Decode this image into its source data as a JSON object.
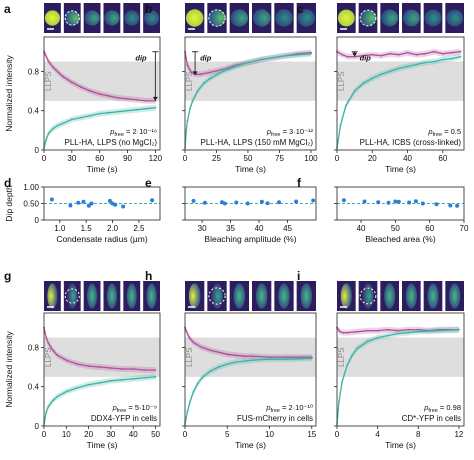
{
  "figure": {
    "colors": {
      "magenta": "#b2509b",
      "teal": "#3fb3a3",
      "band": "#dedede",
      "dot": "#2c7fd6",
      "guide": "#3fb3a3",
      "cell_dark": "#3a2a6e",
      "cell_bright": "#d8e83a"
    },
    "icon_names": [
      "scale-bar-icon",
      "dashed-circle-icon",
      "dip-arrow-icon"
    ],
    "ylabel_top": "Normalized intensity",
    "ylabel_mid": "Dip depth",
    "band_label": "LLPS",
    "dip_label": "dip"
  },
  "chart_data": [
    {
      "id": "a",
      "type": "line",
      "panel_label": "a",
      "xlabel": "Time (s)",
      "xlim": [
        0,
        125
      ],
      "xticks": [
        0,
        30,
        60,
        90,
        120
      ],
      "ylim": [
        0,
        1.15
      ],
      "band": [
        0.5,
        0.9
      ],
      "y_axis_label": true,
      "p_prefix": "p",
      "p_sub": "free",
      "p_text": " = 2·10⁻¹⁶",
      "condition": "PLL-HA, LLPS (no MgCl₂)",
      "dip": {
        "x": 120,
        "top": 1.0,
        "bottom": 0.5
      },
      "series": [
        {
          "role": "magenta",
          "x": [
            0,
            5,
            10,
            20,
            30,
            40,
            50,
            60,
            70,
            80,
            90,
            100,
            110,
            120
          ],
          "y": [
            1.0,
            0.9,
            0.84,
            0.75,
            0.69,
            0.64,
            0.6,
            0.57,
            0.55,
            0.53,
            0.52,
            0.51,
            0.5,
            0.5
          ]
        },
        {
          "role": "teal",
          "x": [
            0,
            2,
            5,
            10,
            15,
            20,
            30,
            40,
            50,
            60,
            70,
            80,
            90,
            100,
            110,
            120
          ],
          "y": [
            0.02,
            0.1,
            0.17,
            0.22,
            0.25,
            0.27,
            0.31,
            0.33,
            0.35,
            0.37,
            0.38,
            0.39,
            0.4,
            0.41,
            0.42,
            0.43
          ]
        }
      ]
    },
    {
      "id": "b",
      "type": "line",
      "panel_label": "b",
      "xlabel": "Time (s)",
      "xlim": [
        0,
        104
      ],
      "xticks": [
        0,
        25,
        50,
        75,
        100
      ],
      "ylim": [
        0,
        1.15
      ],
      "band": [
        0.5,
        0.9
      ],
      "y_axis_label": false,
      "p_prefix": "p",
      "p_sub": "free",
      "p_text": " = 3·10⁻¹²",
      "condition": "PLL-HA, LLPS (150 mM MgCl₂)",
      "dip": {
        "x": 8,
        "top": 1.0,
        "bottom": 0.76
      },
      "series": [
        {
          "role": "magenta",
          "x": [
            0,
            2,
            5,
            8,
            12,
            20,
            30,
            40,
            50,
            60,
            70,
            80,
            90,
            100
          ],
          "y": [
            1.0,
            0.86,
            0.79,
            0.77,
            0.77,
            0.79,
            0.82,
            0.86,
            0.89,
            0.92,
            0.94,
            0.96,
            0.98,
            0.99
          ]
        },
        {
          "role": "teal",
          "x": [
            0,
            1,
            2,
            4,
            6,
            10,
            15,
            20,
            30,
            40,
            50,
            60,
            70,
            80,
            90,
            100
          ],
          "y": [
            0.02,
            0.2,
            0.3,
            0.42,
            0.5,
            0.6,
            0.68,
            0.73,
            0.8,
            0.85,
            0.89,
            0.92,
            0.94,
            0.96,
            0.97,
            0.98
          ]
        }
      ]
    },
    {
      "id": "c",
      "type": "line",
      "panel_label": "c",
      "xlabel": "Time (s)",
      "xlim": [
        0,
        72
      ],
      "xticks": [
        0,
        20,
        40,
        60
      ],
      "ylim": [
        0,
        1.15
      ],
      "band": [
        0.5,
        0.9
      ],
      "y_axis_label": false,
      "p_prefix": "p",
      "p_sub": "free",
      "p_text": " = 0.5",
      "condition": "PLL-HA, ICBS (cross-linked)",
      "dip": {
        "x": 10,
        "top": 1.0,
        "bottom": 0.95
      },
      "series": [
        {
          "role": "magenta",
          "x": [
            0,
            3,
            6,
            10,
            15,
            20,
            25,
            30,
            35,
            40,
            45,
            50,
            55,
            60,
            65,
            70
          ],
          "y": [
            1.0,
            0.97,
            0.95,
            0.95,
            0.96,
            0.97,
            0.96,
            0.98,
            0.97,
            0.99,
            0.97,
            0.98,
            1.0,
            0.98,
            0.99,
            1.0
          ]
        },
        {
          "role": "teal",
          "x": [
            0,
            2,
            5,
            10,
            15,
            20,
            25,
            30,
            35,
            40,
            45,
            50,
            55,
            60,
            65,
            70
          ],
          "y": [
            0.02,
            0.25,
            0.45,
            0.6,
            0.68,
            0.73,
            0.77,
            0.8,
            0.83,
            0.85,
            0.87,
            0.89,
            0.9,
            0.92,
            0.93,
            0.95
          ]
        }
      ]
    },
    {
      "id": "d",
      "type": "scatter",
      "panel_label": "d",
      "xlabel": "Condensate radius (µm)",
      "xlim": [
        0.7,
        2.9
      ],
      "xticks": [
        1.0,
        1.5,
        2.0,
        2.5
      ],
      "xtick_labels": [
        "1.0",
        "1.5",
        "2.0",
        "2.5"
      ],
      "ylim": [
        0,
        1.0
      ],
      "yticks": [
        0,
        0.5,
        1.0
      ],
      "ytick_labels": [
        "0",
        "0.50",
        "1.00"
      ],
      "y_axis_label": true,
      "guide": 0.5,
      "x": [
        0.85,
        1.2,
        1.35,
        1.45,
        1.55,
        1.6,
        1.95,
        2.0,
        2.05,
        2.2,
        2.75
      ],
      "y": [
        0.62,
        0.44,
        0.52,
        0.55,
        0.43,
        0.5,
        0.58,
        0.5,
        0.46,
        0.41,
        0.6
      ]
    },
    {
      "id": "e",
      "type": "scatter",
      "panel_label": "e",
      "xlabel": "Bleaching amplitude (%)",
      "xlim": [
        27,
        50
      ],
      "xticks": [
        30,
        35,
        40,
        45
      ],
      "xtick_labels": [
        "30",
        "35",
        "40",
        "45"
      ],
      "ylim": [
        0,
        1.0
      ],
      "yticks": [
        0,
        0.5,
        1.0
      ],
      "ytick_labels": [
        "",
        "",
        ""
      ],
      "y_axis_label": false,
      "guide": 0.5,
      "x": [
        28.5,
        30.5,
        33.5,
        34,
        36,
        38,
        40.5,
        41.5,
        43.5,
        46.5,
        49.5
      ],
      "y": [
        0.58,
        0.52,
        0.54,
        0.5,
        0.53,
        0.5,
        0.55,
        0.51,
        0.54,
        0.56,
        0.59
      ]
    },
    {
      "id": "f",
      "type": "scatter",
      "panel_label": "f",
      "xlabel": "Bleached area (%)",
      "xlim": [
        33,
        70
      ],
      "xticks": [
        40,
        50,
        60,
        70
      ],
      "xtick_labels": [
        "40",
        "50",
        "60",
        "70"
      ],
      "ylim": [
        0,
        1.0
      ],
      "yticks": [
        0,
        0.5,
        1.0
      ],
      "ytick_labels": [
        "",
        "",
        ""
      ],
      "y_axis_label": false,
      "guide": 0.5,
      "x": [
        35,
        41,
        45,
        48,
        50,
        51,
        54,
        56,
        58,
        62,
        66,
        68
      ],
      "y": [
        0.6,
        0.56,
        0.54,
        0.52,
        0.56,
        0.55,
        0.53,
        0.57,
        0.5,
        0.48,
        0.44,
        0.43
      ]
    },
    {
      "id": "g",
      "type": "line",
      "panel_label": "g",
      "xlabel": "Time (s)",
      "xlim": [
        0,
        52
      ],
      "xticks": [
        0,
        10,
        20,
        30,
        40,
        50
      ],
      "ylim": [
        0,
        1.15
      ],
      "band": [
        0.5,
        0.9
      ],
      "y_axis_label": true,
      "p_prefix": "p",
      "p_sub": "free",
      "p_text": " = 5·10⁻⁹",
      "condition": "DDX4-YFP in cells",
      "series": [
        {
          "role": "magenta",
          "x": [
            0,
            1,
            2,
            4,
            6,
            10,
            15,
            20,
            25,
            30,
            35,
            40,
            45,
            50
          ],
          "y": [
            1.0,
            0.9,
            0.84,
            0.77,
            0.72,
            0.67,
            0.63,
            0.61,
            0.6,
            0.59,
            0.58,
            0.58,
            0.57,
            0.57
          ]
        },
        {
          "role": "teal",
          "x": [
            0,
            1,
            2,
            4,
            6,
            10,
            15,
            20,
            25,
            30,
            35,
            40,
            45,
            50
          ],
          "y": [
            0.02,
            0.14,
            0.2,
            0.26,
            0.3,
            0.35,
            0.39,
            0.42,
            0.44,
            0.46,
            0.47,
            0.48,
            0.49,
            0.5
          ]
        }
      ]
    },
    {
      "id": "h",
      "type": "line",
      "panel_label": "h",
      "xlabel": "Time (s)",
      "xlim": [
        0,
        15.5
      ],
      "xticks": [
        0,
        5,
        10,
        15
      ],
      "ylim": [
        0,
        1.15
      ],
      "band": [
        0.5,
        0.9
      ],
      "y_axis_label": false,
      "p_prefix": "p",
      "p_sub": "free",
      "p_text": " = 2·10⁻¹⁰",
      "condition": "FUS-mCherry in cells",
      "series": [
        {
          "role": "magenta",
          "x": [
            0,
            0.5,
            1,
            2,
            3,
            4,
            5,
            6,
            7,
            8,
            10,
            12,
            14,
            15
          ],
          "y": [
            1.0,
            0.9,
            0.85,
            0.8,
            0.77,
            0.75,
            0.73,
            0.72,
            0.71,
            0.71,
            0.7,
            0.7,
            0.7,
            0.7
          ]
        },
        {
          "role": "teal",
          "x": [
            0,
            0.3,
            0.6,
            1,
            1.5,
            2,
            3,
            4,
            5,
            6,
            7,
            8,
            10,
            12,
            15
          ],
          "y": [
            0.02,
            0.15,
            0.25,
            0.35,
            0.43,
            0.49,
            0.56,
            0.6,
            0.63,
            0.65,
            0.66,
            0.67,
            0.68,
            0.68,
            0.69
          ]
        }
      ]
    },
    {
      "id": "i",
      "type": "line",
      "panel_label": "i",
      "xlabel": "Time (s)",
      "xlim": [
        0,
        12.5
      ],
      "xticks": [
        0,
        4,
        8,
        12
      ],
      "ylim": [
        0,
        1.15
      ],
      "band": [
        0.5,
        0.9
      ],
      "y_axis_label": false,
      "p_prefix": "p",
      "p_sub": "free",
      "p_text": " = 0.98",
      "condition": "CD*-YFP in cells",
      "series": [
        {
          "role": "magenta",
          "x": [
            0,
            0.3,
            0.6,
            1,
            2,
            3,
            4,
            5,
            6,
            7,
            8,
            9,
            10,
            11,
            12
          ],
          "y": [
            1.0,
            0.96,
            0.95,
            0.95,
            0.96,
            0.97,
            0.97,
            0.98,
            0.97,
            0.98,
            0.98,
            0.97,
            0.98,
            0.98,
            0.98
          ]
        },
        {
          "role": "teal",
          "x": [
            0,
            0.2,
            0.5,
            1,
            1.5,
            2,
            3,
            4,
            5,
            6,
            7,
            8,
            10,
            12
          ],
          "y": [
            0.02,
            0.25,
            0.45,
            0.62,
            0.72,
            0.79,
            0.86,
            0.9,
            0.92,
            0.94,
            0.95,
            0.96,
            0.97,
            0.98
          ]
        }
      ]
    }
  ]
}
